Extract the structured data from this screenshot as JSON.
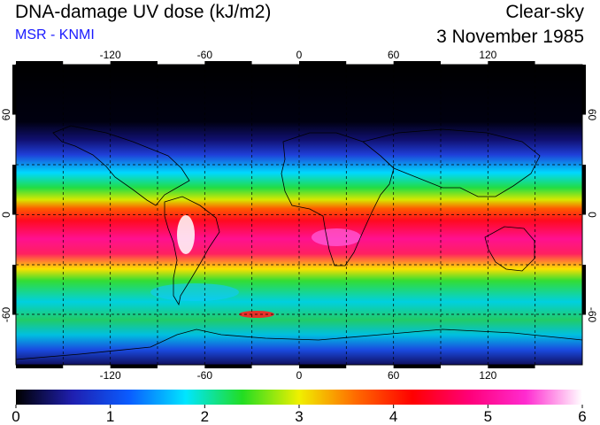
{
  "header": {
    "title": "DNA-damage UV dose (kJ/m2)",
    "source": "MSR - KNMI",
    "sky_condition": "Clear-sky",
    "date": "3 November 1985"
  },
  "map": {
    "lon_ticks": [
      "-120",
      "-60",
      "0",
      "60",
      "120"
    ],
    "lon_values": [
      -120,
      -60,
      0,
      60,
      120
    ],
    "lat_ticks": [
      "60",
      "0",
      "-60"
    ],
    "lat_values": [
      60,
      0,
      -60
    ],
    "lat_range": [
      -90,
      90
    ],
    "lon_range": [
      -180,
      180
    ],
    "grid": "dashed, every 30 degrees",
    "coastlines": true
  },
  "colorbar": {
    "labels": [
      "0",
      "1",
      "2",
      "3",
      "4",
      "5",
      "6"
    ],
    "min": 0,
    "max": 6,
    "colors": [
      "#000000",
      "#1f1fb0",
      "#0a5cff",
      "#00e6ff",
      "#22dd22",
      "#f0f000",
      "#ff6a00",
      "#ff0000",
      "#ff0078",
      "#ff2bd0",
      "#ffffff"
    ]
  }
}
